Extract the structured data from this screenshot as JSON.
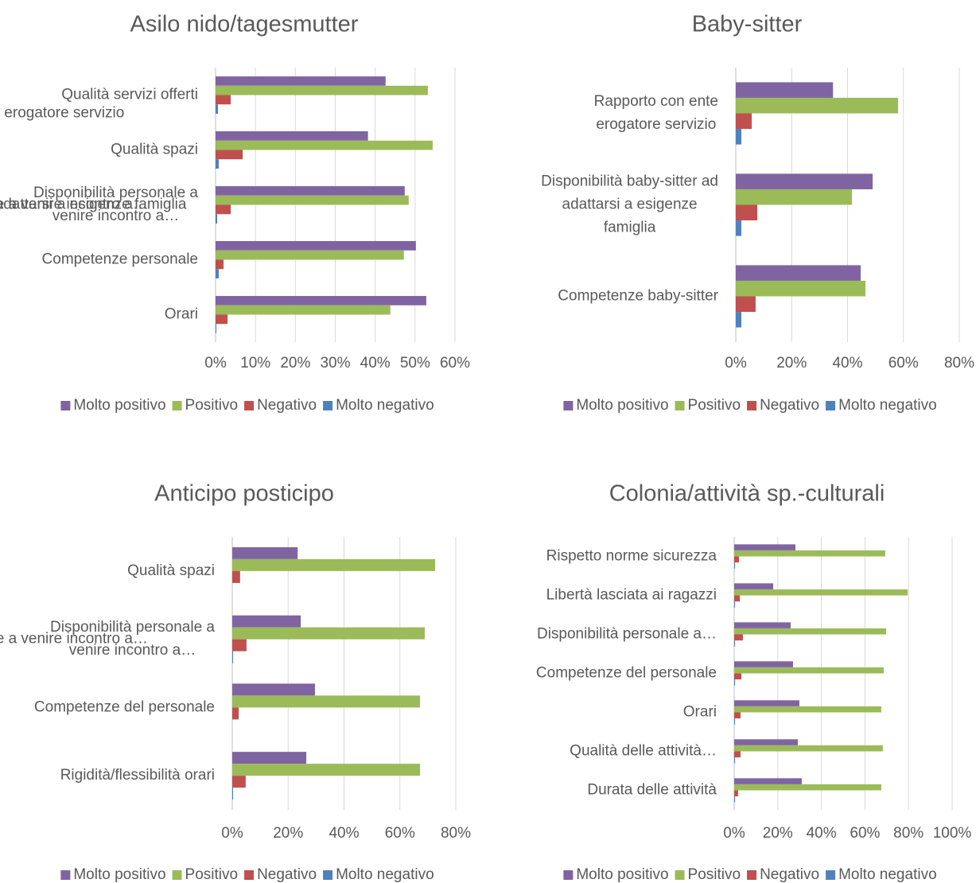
{
  "chart_data": [
    {
      "type": "bar",
      "orientation": "horizontal",
      "title": "Asilo nido/tagesmutter",
      "categories": [
        "Qualità servizi offerti",
        "Qualità spazi",
        "Disponibilità personale a\nvenire incontro a…",
        "Competenze personale",
        "Orari"
      ],
      "series": [
        {
          "name": "Molto positivo",
          "color": "#8064a2",
          "values": [
            42.6,
            38.2,
            47.4,
            50.2,
            52.8
          ]
        },
        {
          "name": "Positivo",
          "color": "#9bbb59",
          "values": [
            53.2,
            54.4,
            48.4,
            47.2,
            43.8
          ]
        },
        {
          "name": "Negativo",
          "color": "#c0504d",
          "values": [
            3.8,
            6.8,
            3.8,
            2,
            3
          ]
        },
        {
          "name": "Molto negativo",
          "color": "#4f81bd",
          "values": [
            0.6,
            0.8,
            0.4,
            0.8,
            0.2
          ]
        }
      ],
      "xlim": [
        0,
        60
      ],
      "xticks": [
        {
          "value": 0,
          "label": "0%"
        },
        {
          "value": 10,
          "label": "10%"
        },
        {
          "value": 20,
          "label": "20%"
        },
        {
          "value": 30,
          "label": "30%"
        },
        {
          "value": 40,
          "label": "40%"
        },
        {
          "value": 50,
          "label": "50%"
        },
        {
          "value": 60,
          "label": "60%"
        }
      ],
      "grid": true,
      "legend": "bottom"
    },
    {
      "type": "bar",
      "orientation": "horizontal",
      "title": "Baby-sitter",
      "categories": [
        "Rapporto con ente\nerogatore servizio",
        "Disponibilità baby-sitter ad\nadattarsi a esigenze\nfamiglia",
        "Competenze baby-sitter"
      ],
      "series": [
        {
          "name": "Molto positivo",
          "color": "#8064a2",
          "values": [
            34.8,
            49,
            44.7
          ]
        },
        {
          "name": "Positivo",
          "color": "#9bbb59",
          "values": [
            58.1,
            41.6,
            46.4
          ]
        },
        {
          "name": "Negativo",
          "color": "#c0504d",
          "values": [
            5.7,
            7.7,
            7.1
          ]
        },
        {
          "name": "Molto negativo",
          "color": "#4f81bd",
          "values": [
            2,
            2,
            2
          ]
        }
      ],
      "xlim": [
        0,
        80
      ],
      "xticks": [
        {
          "value": 0,
          "label": "0%"
        },
        {
          "value": 20,
          "label": "20%"
        },
        {
          "value": 40,
          "label": "40%"
        },
        {
          "value": 60,
          "label": "60%"
        },
        {
          "value": 80,
          "label": "80%"
        }
      ],
      "grid": true,
      "legend": "bottom"
    },
    {
      "type": "bar",
      "orientation": "horizontal",
      "title": "Anticipo posticipo",
      "categories": [
        "Qualità spazi",
        "Disponibilità personale a\nvenire incontro a…",
        "Competenze del personale",
        "Rigidità/flessibilità orari"
      ],
      "series": [
        {
          "name": "Molto positivo",
          "color": "#8064a2",
          "values": [
            23.4,
            24.5,
            29.6,
            26.5
          ]
        },
        {
          "name": "Positivo",
          "color": "#9bbb59",
          "values": [
            72.6,
            68.9,
            67.2,
            67.2
          ]
        },
        {
          "name": "Negativo",
          "color": "#c0504d",
          "values": [
            2.8,
            5.1,
            2.3,
            4.8
          ]
        },
        {
          "name": "Molto negativo",
          "color": "#4f81bd",
          "values": [
            0,
            0.3,
            0,
            0.3
          ]
        }
      ],
      "xlim": [
        0,
        80
      ],
      "xticks": [
        {
          "value": 0,
          "label": "0%"
        },
        {
          "value": 20,
          "label": "20%"
        },
        {
          "value": 40,
          "label": "40%"
        },
        {
          "value": 60,
          "label": "60%"
        },
        {
          "value": 80,
          "label": "80%"
        }
      ],
      "grid": true,
      "legend": "bottom"
    },
    {
      "type": "bar",
      "orientation": "horizontal",
      "title": "Colonia/attività sp.-culturali",
      "categories": [
        "Rispetto norme sicurezza",
        "Libertà lasciata ai ragazzi",
        "Disponibilità personale a…",
        "Competenze del personale",
        "Orari",
        "Qualità delle attività…",
        "Durata delle attività"
      ],
      "series": [
        {
          "name": "Molto positivo",
          "color": "#8064a2",
          "values": [
            28.1,
            17.9,
            25.9,
            27,
            29.9,
            29.2,
            31
          ]
        },
        {
          "name": "Positivo",
          "color": "#9bbb59",
          "values": [
            69.3,
            79.6,
            69.7,
            68.6,
            67.5,
            68.2,
            67.5
          ]
        },
        {
          "name": "Negativo",
          "color": "#c0504d",
          "values": [
            2.2,
            2.6,
            4,
            3.3,
            2.9,
            2.9,
            1.8
          ]
        },
        {
          "name": "Molto negativo",
          "color": "#4f81bd",
          "values": [
            0.4,
            0.4,
            0.4,
            0.4,
            0.4,
            0.4,
            0.4
          ]
        }
      ],
      "xlim": [
        0,
        100
      ],
      "xticks": [
        {
          "value": 0,
          "label": "0%"
        },
        {
          "value": 20,
          "label": "20%"
        },
        {
          "value": 40,
          "label": "40%"
        },
        {
          "value": 60,
          "label": "60%"
        },
        {
          "value": 80,
          "label": "80%"
        },
        {
          "value": 100,
          "label": "100%"
        }
      ],
      "grid": true,
      "legend": "bottom"
    }
  ]
}
